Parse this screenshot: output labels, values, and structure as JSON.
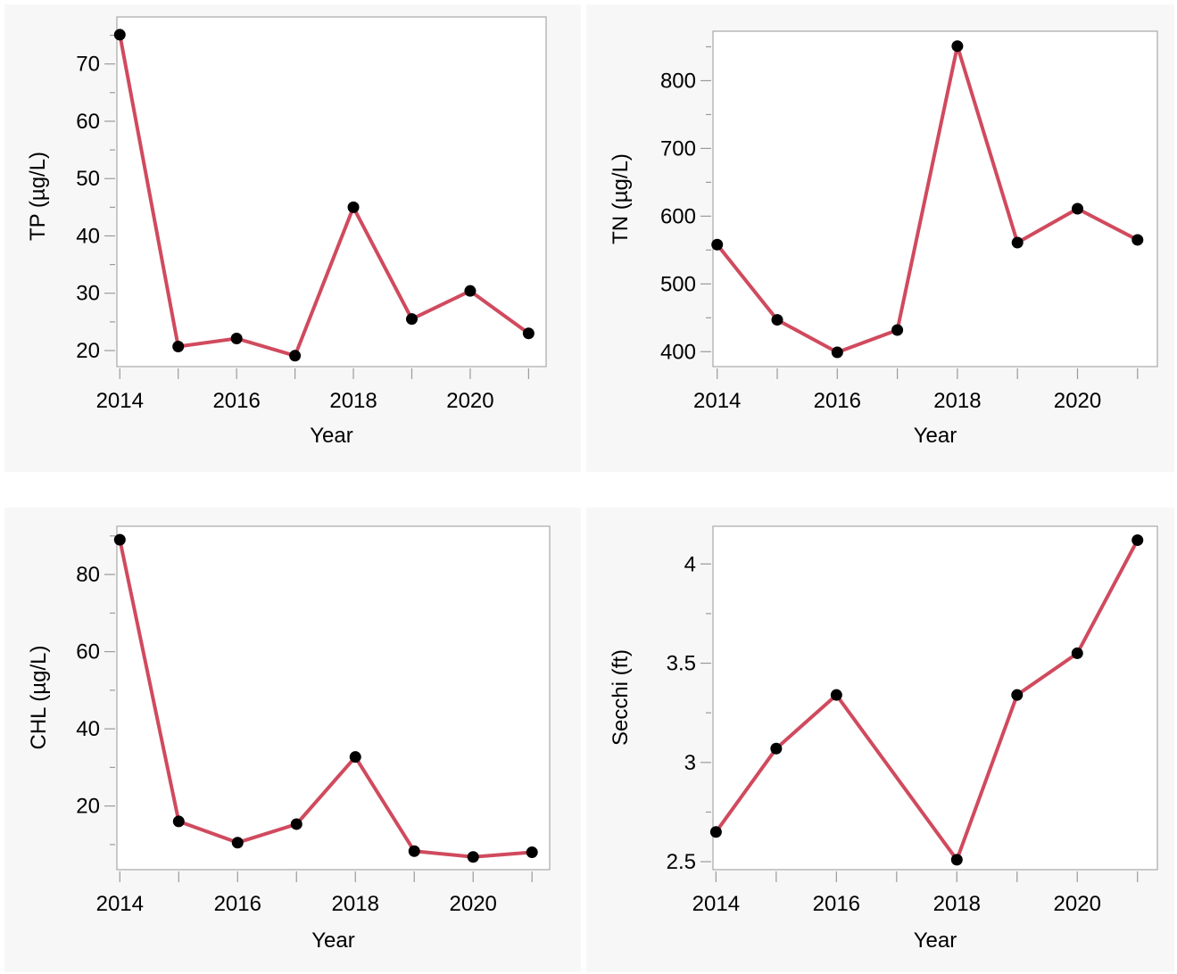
{
  "chart_data": [
    {
      "type": "line",
      "ylabel": "TP (µg/L)",
      "xlabel": "Year",
      "x": [
        2014,
        2015,
        2016,
        2017,
        2018,
        2019,
        2020,
        2021
      ],
      "values": [
        75.1,
        20.7,
        22.1,
        19.1,
        45.0,
        25.5,
        30.4,
        23.0
      ],
      "xticks": [
        2014,
        2016,
        2018,
        2020
      ],
      "xlim": [
        2013.95,
        2021.3
      ],
      "yticks": [
        20,
        30,
        40,
        50,
        60,
        70
      ],
      "ylim": [
        17.2,
        78.2
      ],
      "grid": false,
      "line_color": "#d04a5e",
      "marker_color": "#000000"
    },
    {
      "type": "line",
      "ylabel": "TN (µg/L)",
      "xlabel": "Year",
      "x": [
        2014,
        2015,
        2016,
        2017,
        2018,
        2019,
        2020,
        2021
      ],
      "values": [
        558,
        447,
        399,
        432,
        851,
        561,
        611,
        565
      ],
      "xticks": [
        2014,
        2016,
        2018,
        2020
      ],
      "xlim": [
        2013.93,
        2021.33
      ],
      "yticks": [
        400,
        500,
        600,
        700,
        800
      ],
      "ylim": [
        378,
        873
      ],
      "grid": false,
      "line_color": "#d04a5e",
      "marker_color": "#000000"
    },
    {
      "type": "line",
      "ylabel": "CHL (µg/L)",
      "xlabel": "Year",
      "x": [
        2014,
        2015,
        2016,
        2017,
        2018,
        2019,
        2020,
        2021
      ],
      "values": [
        89.0,
        16.0,
        10.5,
        15.3,
        32.7,
        8.3,
        6.8,
        8.0
      ],
      "xticks": [
        2014,
        2016,
        2018,
        2020
      ],
      "xlim": [
        2013.95,
        2021.3
      ],
      "yticks": [
        20,
        40,
        60,
        80
      ],
      "ylim": [
        3.5,
        92.5
      ],
      "grid": false,
      "line_color": "#d04a5e",
      "marker_color": "#000000"
    },
    {
      "type": "line",
      "ylabel": "Secchi (ft)",
      "xlabel": "Year",
      "x": [
        2014,
        2015,
        2016,
        2018,
        2019,
        2020,
        2021
      ],
      "values": [
        2.65,
        3.07,
        3.34,
        2.51,
        3.34,
        3.55,
        4.12
      ],
      "xticks": [
        2014,
        2016,
        2018,
        2020
      ],
      "xlim": [
        2013.95,
        2021.33
      ],
      "yticks": [
        2.5,
        3,
        3.5,
        4
      ],
      "ylim": [
        2.46,
        4.19
      ],
      "grid": false,
      "line_color": "#d04a5e",
      "marker_color": "#000000"
    }
  ]
}
